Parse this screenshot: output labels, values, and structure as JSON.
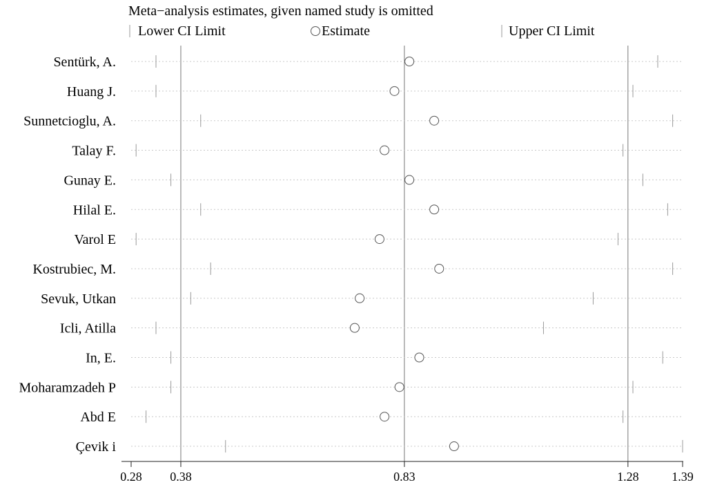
{
  "chart_data": {
    "type": "sensitivity-forest",
    "title": "Meta−analysis estimates, given named study is omitted",
    "legend": {
      "lower": "Lower CI Limit",
      "estimate": "Estimate",
      "upper": "Upper CI Limit"
    },
    "xlim": [
      0.28,
      1.39
    ],
    "ticks": [
      {
        "value": 0.28,
        "label": "0.28"
      },
      {
        "value": 0.38,
        "label": "0.38"
      },
      {
        "value": 0.83,
        "label": "0.83"
      },
      {
        "value": 1.28,
        "label": "1.28"
      },
      {
        "value": 1.39,
        "label": "1.39"
      }
    ],
    "reference_lines": [
      0.38,
      0.83,
      1.28
    ],
    "studies": [
      {
        "name": "Sentürk, A.",
        "lower": 0.33,
        "estimate": 0.84,
        "upper": 1.34
      },
      {
        "name": "Huang J.",
        "lower": 0.33,
        "estimate": 0.81,
        "upper": 1.29
      },
      {
        "name": "Sunnetcioglu, A.",
        "lower": 0.42,
        "estimate": 0.89,
        "upper": 1.37
      },
      {
        "name": "Talay F.",
        "lower": 0.29,
        "estimate": 0.79,
        "upper": 1.27
      },
      {
        "name": "Gunay E.",
        "lower": 0.36,
        "estimate": 0.84,
        "upper": 1.31
      },
      {
        "name": "Hilal E.",
        "lower": 0.42,
        "estimate": 0.89,
        "upper": 1.36
      },
      {
        "name": "Varol E",
        "lower": 0.29,
        "estimate": 0.78,
        "upper": 1.26
      },
      {
        "name": "Kostrubiec, M.",
        "lower": 0.44,
        "estimate": 0.9,
        "upper": 1.37
      },
      {
        "name": "Sevuk, Utkan",
        "lower": 0.4,
        "estimate": 0.74,
        "upper": 1.21
      },
      {
        "name": "Icli, Atilla",
        "lower": 0.33,
        "estimate": 0.73,
        "upper": 1.11
      },
      {
        "name": "In, E.",
        "lower": 0.36,
        "estimate": 0.86,
        "upper": 1.35
      },
      {
        "name": "Moharamzadeh P",
        "lower": 0.36,
        "estimate": 0.82,
        "upper": 1.29
      },
      {
        "name": "Abd E",
        "lower": 0.31,
        "estimate": 0.79,
        "upper": 1.27
      },
      {
        "name": "Çevik i",
        "lower": 0.47,
        "estimate": 0.93,
        "upper": 1.39
      }
    ]
  }
}
